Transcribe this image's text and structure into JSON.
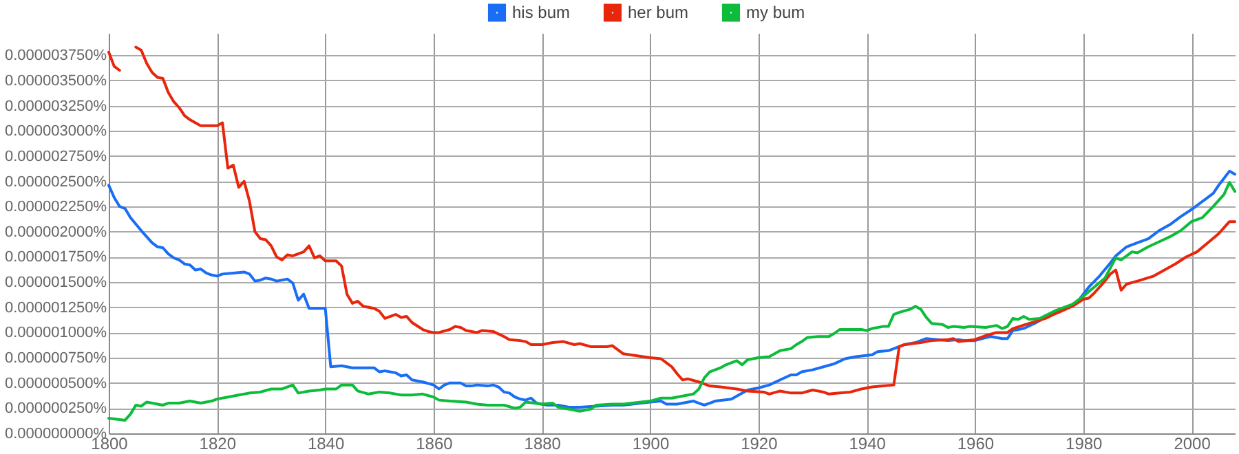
{
  "chart_data": {
    "type": "line",
    "xlim": [
      1800,
      2008
    ],
    "xticks": [
      1800,
      1820,
      1840,
      1860,
      1880,
      1900,
      1920,
      1940,
      1960,
      1980,
      2000
    ],
    "ylim": [
      0,
      3.97e-06
    ],
    "yticks": [
      {
        "value": 0,
        "label": "0.000000000%"
      },
      {
        "value": 2.5e-07,
        "label": "0.000000250%"
      },
      {
        "value": 5e-07,
        "label": "0.000000500%"
      },
      {
        "value": 7.5e-07,
        "label": "0.000000750%"
      },
      {
        "value": 1e-06,
        "label": "0.000001000%"
      },
      {
        "value": 1.25e-06,
        "label": "0.000001250%"
      },
      {
        "value": 1.5e-06,
        "label": "0.000001500%"
      },
      {
        "value": 1.75e-06,
        "label": "0.000001750%"
      },
      {
        "value": 2e-06,
        "label": "0.000002000%"
      },
      {
        "value": 2.25e-06,
        "label": "0.000002250%"
      },
      {
        "value": 2.5e-06,
        "label": "0.000002500%"
      },
      {
        "value": 2.75e-06,
        "label": "0.000002750%"
      },
      {
        "value": 3e-06,
        "label": "0.000003000%"
      },
      {
        "value": 3.25e-06,
        "label": "0.000003250%"
      },
      {
        "value": 3.5e-06,
        "label": "0.000003500%"
      },
      {
        "value": 3.75e-06,
        "label": "0.000003750%"
      }
    ],
    "grid": true,
    "legend": "top",
    "series": [
      {
        "name": "his bum",
        "color": "#1a6ef5",
        "x": [
          1800,
          1801,
          1802,
          1803,
          1804,
          1806,
          1808,
          1809,
          1810,
          1811,
          1812,
          1813,
          1814,
          1815,
          1816,
          1817,
          1818,
          1819,
          1820,
          1821,
          1823,
          1825,
          1826,
          1827,
          1828,
          1829,
          1830,
          1831,
          1833,
          1834,
          1835,
          1836,
          1837,
          1840,
          1841,
          1843,
          1845,
          1849,
          1850,
          1851,
          1853,
          1854,
          1855,
          1856,
          1858,
          1860,
          1861,
          1862,
          1863,
          1865,
          1866,
          1867,
          1868,
          1870,
          1871,
          1872,
          1873,
          1874,
          1875,
          1876,
          1877,
          1878,
          1879,
          1881,
          1883,
          1885,
          1887,
          1890,
          1893,
          1895,
          1900,
          1902,
          1903,
          1905,
          1907,
          1908,
          1910,
          1911,
          1912,
          1915,
          1918,
          1920,
          1922,
          1924,
          1926,
          1927,
          1928,
          1930,
          1932,
          1934,
          1936,
          1938,
          1941,
          1942,
          1944,
          1945,
          1947,
          1949,
          1950,
          1951,
          1953,
          1955,
          1957,
          1958,
          1960,
          1962,
          1963,
          1965,
          1966,
          1967,
          1969,
          1971,
          1974,
          1976,
          1978,
          1979,
          1981,
          1983,
          1985,
          1986,
          1988,
          1990,
          1992,
          1994,
          1996,
          1998,
          2000,
          2002,
          2004,
          2005,
          2007,
          2008
        ],
        "values": [
          2.46e-06,
          2.34e-06,
          2.25e-06,
          2.23e-06,
          2.14e-06,
          2.01e-06,
          1.89e-06,
          1.85e-06,
          1.84e-06,
          1.78e-06,
          1.74e-06,
          1.72e-06,
          1.68e-06,
          1.67e-06,
          1.62e-06,
          1.63e-06,
          1.59e-06,
          1.57e-06,
          1.56e-06,
          1.58e-06,
          1.59e-06,
          1.6e-06,
          1.58e-06,
          1.51e-06,
          1.52e-06,
          1.54e-06,
          1.53e-06,
          1.51e-06,
          1.53e-06,
          1.49e-06,
          1.32e-06,
          1.38e-06,
          1.24e-06,
          1.24e-06,
          6.6e-07,
          6.7e-07,
          6.5e-07,
          6.5e-07,
          6.1e-07,
          6.2e-07,
          6e-07,
          5.7e-07,
          5.8e-07,
          5.3e-07,
          5.1e-07,
          4.8e-07,
          4.4e-07,
          4.8e-07,
          5e-07,
          5e-07,
          4.7e-07,
          4.7e-07,
          4.8e-07,
          4.7e-07,
          4.8e-07,
          4.6e-07,
          4.1e-07,
          4e-07,
          3.6e-07,
          3.4e-07,
          3.3e-07,
          3.5e-07,
          3e-07,
          2.8e-07,
          2.8e-07,
          2.6e-07,
          2.6e-07,
          2.7e-07,
          2.8e-07,
          2.8e-07,
          3.1e-07,
          3.2e-07,
          2.9e-07,
          2.9e-07,
          3.1e-07,
          3.2e-07,
          2.8e-07,
          3e-07,
          3.2e-07,
          3.4e-07,
          4.3e-07,
          4.5e-07,
          4.8e-07,
          5.3e-07,
          5.8e-07,
          5.8e-07,
          6.1e-07,
          6.3e-07,
          6.6e-07,
          6.9e-07,
          7.4e-07,
          7.6e-07,
          7.8e-07,
          8.1e-07,
          8.2e-07,
          8.4e-07,
          8.8e-07,
          9e-07,
          9.2e-07,
          9.4e-07,
          9.3e-07,
          9.2e-07,
          9.3e-07,
          9.2e-07,
          9.2e-07,
          9.5e-07,
          9.6e-07,
          9.4e-07,
          9.4e-07,
          1.02e-06,
          1.04e-06,
          1.09e-06,
          1.18e-06,
          1.22e-06,
          1.27e-06,
          1.31e-06,
          1.45e-06,
          1.56e-06,
          1.69e-06,
          1.76e-06,
          1.85e-06,
          1.89e-06,
          1.93e-06,
          2.01e-06,
          2.07e-06,
          2.15e-06,
          2.22e-06,
          2.3e-06,
          2.38e-06,
          2.46e-06,
          2.6e-06,
          2.57e-06
        ]
      },
      {
        "name": "her bum",
        "color": "#e8260c",
        "x": [
          1800,
          1801,
          1802,
          1803,
          1804,
          1805,
          1806,
          1807,
          1808,
          1809,
          1810,
          1811,
          1812,
          1813,
          1814,
          1815,
          1816,
          1817,
          1820,
          1821,
          1822,
          1823,
          1824,
          1825,
          1826,
          1827,
          1828,
          1829,
          1830,
          1831,
          1832,
          1833,
          1834,
          1836,
          1837,
          1838,
          1839,
          1840,
          1842,
          1843,
          1844,
          1845,
          1846,
          1847,
          1849,
          1850,
          1851,
          1853,
          1854,
          1855,
          1856,
          1858,
          1859,
          1860,
          1861,
          1863,
          1864,
          1865,
          1866,
          1868,
          1869,
          1871,
          1873,
          1874,
          1876,
          1877,
          1878,
          1880,
          1882,
          1884,
          1886,
          1887,
          1889,
          1892,
          1893,
          1895,
          1900,
          1902,
          1903,
          1904,
          1905,
          1906,
          1907,
          1909,
          1910,
          1911,
          1913,
          1916,
          1918,
          1921,
          1922,
          1924,
          1926,
          1928,
          1930,
          1932,
          1933,
          1935,
          1937,
          1939,
          1941,
          1943,
          1945,
          1946,
          1947,
          1950,
          1952,
          1955,
          1956,
          1957,
          1960,
          1962,
          1964,
          1966,
          1967,
          1970,
          1973,
          1975,
          1978,
          1980,
          1981,
          1982,
          1984,
          1985,
          1986,
          1987,
          1988,
          1990,
          1993,
          1995,
          1997,
          1999,
          2001,
          2003,
          2005,
          2007,
          2008
        ],
        "values": [
          3.78e-06,
          3.64e-06,
          3.6e-06,
          null,
          null,
          3.83e-06,
          3.8e-06,
          3.67e-06,
          3.58e-06,
          3.53e-06,
          3.52e-06,
          3.38e-06,
          3.29e-06,
          3.23e-06,
          3.15e-06,
          3.11e-06,
          3.08e-06,
          3.05e-06,
          3.05e-06,
          3.08e-06,
          2.63e-06,
          2.66e-06,
          2.44e-06,
          2.5e-06,
          2.3e-06,
          2e-06,
          1.93e-06,
          1.92e-06,
          1.86e-06,
          1.75e-06,
          1.72e-06,
          1.77e-06,
          1.76e-06,
          1.8e-06,
          1.86e-06,
          1.74e-06,
          1.76e-06,
          1.71e-06,
          1.71e-06,
          1.66e-06,
          1.38e-06,
          1.29e-06,
          1.31e-06,
          1.26e-06,
          1.24e-06,
          1.21e-06,
          1.14e-06,
          1.18e-06,
          1.15e-06,
          1.16e-06,
          1.1e-06,
          1.03e-06,
          1.01e-06,
          1e-06,
          1e-06,
          1.03e-06,
          1.06e-06,
          1.05e-06,
          1.02e-06,
          1e-06,
          1.02e-06,
          1.01e-06,
          9.6e-07,
          9.3e-07,
          9.2e-07,
          9.1e-07,
          8.8e-07,
          8.8e-07,
          9e-07,
          9.1e-07,
          8.8e-07,
          8.9e-07,
          8.6e-07,
          8.6e-07,
          8.7e-07,
          7.9e-07,
          7.5e-07,
          7.4e-07,
          7e-07,
          6.6e-07,
          5.9e-07,
          5.3e-07,
          5.4e-07,
          5.1e-07,
          4.9e-07,
          4.7e-07,
          4.6e-07,
          4.4e-07,
          4.2e-07,
          4.1e-07,
          3.9e-07,
          4.2e-07,
          4e-07,
          4e-07,
          4.3e-07,
          4.1e-07,
          3.9e-07,
          4e-07,
          4.1e-07,
          4.4e-07,
          4.6e-07,
          4.7e-07,
          4.8e-07,
          8.6e-07,
          8.8e-07,
          9e-07,
          9.2e-07,
          9.3e-07,
          9.4e-07,
          9.1e-07,
          9.3e-07,
          9.7e-07,
          1e-06,
          1e-06,
          1.04e-06,
          1.09e-06,
          1.14e-06,
          1.19e-06,
          1.26e-06,
          1.33e-06,
          1.34e-06,
          1.39e-06,
          1.51e-06,
          1.58e-06,
          1.62e-06,
          1.42e-06,
          1.48e-06,
          1.51e-06,
          1.56e-06,
          1.62e-06,
          1.68e-06,
          1.75e-06,
          1.8e-06,
          1.89e-06,
          1.98e-06,
          2.1e-06,
          2.1e-06
        ]
      },
      {
        "name": "my bum",
        "color": "#0cbc3a",
        "x": [
          1800,
          1803,
          1804,
          1805,
          1806,
          1807,
          1809,
          1810,
          1811,
          1813,
          1815,
          1817,
          1819,
          1820,
          1822,
          1824,
          1826,
          1828,
          1830,
          1832,
          1834,
          1835,
          1837,
          1839,
          1840,
          1842,
          1843,
          1845,
          1846,
          1848,
          1850,
          1852,
          1854,
          1856,
          1858,
          1860,
          1861,
          1863,
          1866,
          1868,
          1870,
          1873,
          1875,
          1876,
          1877,
          1880,
          1882,
          1883,
          1885,
          1887,
          1889,
          1890,
          1893,
          1895,
          1900,
          1902,
          1904,
          1906,
          1908,
          1909,
          1910,
          1911,
          1913,
          1914,
          1916,
          1917,
          1918,
          1920,
          1922,
          1924,
          1926,
          1927,
          1928,
          1929,
          1931,
          1933,
          1934,
          1935,
          1937,
          1939,
          1940,
          1941,
          1943,
          1944,
          1945,
          1946,
          1948,
          1949,
          1950,
          1951,
          1952,
          1954,
          1955,
          1956,
          1958,
          1959,
          1962,
          1964,
          1965,
          1966,
          1967,
          1968,
          1969,
          1970,
          1972,
          1975,
          1978,
          1980,
          1982,
          1984,
          1985,
          1986,
          1987,
          1989,
          1990,
          1992,
          1994,
          1996,
          1998,
          2000,
          2002,
          2004,
          2006,
          2007,
          2008
        ],
        "values": [
          1.5e-07,
          1.3e-07,
          1.9e-07,
          2.8e-07,
          2.7e-07,
          3.1e-07,
          2.9e-07,
          2.8e-07,
          3e-07,
          3e-07,
          3.2e-07,
          3e-07,
          3.2e-07,
          3.4e-07,
          3.6e-07,
          3.8e-07,
          4e-07,
          4.1e-07,
          4.4e-07,
          4.4e-07,
          4.8e-07,
          4e-07,
          4.2e-07,
          4.3e-07,
          4.4e-07,
          4.4e-07,
          4.8e-07,
          4.8e-07,
          4.2e-07,
          3.9e-07,
          4.1e-07,
          4e-07,
          3.8e-07,
          3.8e-07,
          3.9e-07,
          3.6e-07,
          3.3e-07,
          3.2e-07,
          3.1e-07,
          2.9e-07,
          2.8e-07,
          2.8e-07,
          2.5e-07,
          2.6e-07,
          3.1e-07,
          2.9e-07,
          3e-07,
          2.6e-07,
          2.4e-07,
          2.2e-07,
          2.4e-07,
          2.8e-07,
          2.9e-07,
          2.9e-07,
          3.2e-07,
          3.5e-07,
          3.5e-07,
          3.7e-07,
          3.9e-07,
          4.4e-07,
          5.5e-07,
          6.1e-07,
          6.5e-07,
          6.8e-07,
          7.2e-07,
          6.8e-07,
          7.3e-07,
          7.5e-07,
          7.6e-07,
          8.2e-07,
          8.4e-07,
          8.8e-07,
          9.1e-07,
          9.5e-07,
          9.6e-07,
          9.6e-07,
          9.9e-07,
          1.03e-06,
          1.03e-06,
          1.03e-06,
          1.02e-06,
          1.04e-06,
          1.06e-06,
          1.06e-06,
          1.18e-06,
          1.2e-06,
          1.23e-06,
          1.26e-06,
          1.23e-06,
          1.15e-06,
          1.09e-06,
          1.08e-06,
          1.05e-06,
          1.06e-06,
          1.05e-06,
          1.06e-06,
          1.05e-06,
          1.07e-06,
          1.04e-06,
          1.06e-06,
          1.14e-06,
          1.13e-06,
          1.16e-06,
          1.13e-06,
          1.14e-06,
          1.22e-06,
          1.28e-06,
          1.36e-06,
          1.45e-06,
          1.54e-06,
          1.64e-06,
          1.74e-06,
          1.72e-06,
          1.8e-06,
          1.79e-06,
          1.85e-06,
          1.9e-06,
          1.95e-06,
          2.01e-06,
          2.1e-06,
          2.14e-06,
          2.25e-06,
          2.37e-06,
          2.49e-06,
          2.4e-06
        ]
      }
    ]
  }
}
